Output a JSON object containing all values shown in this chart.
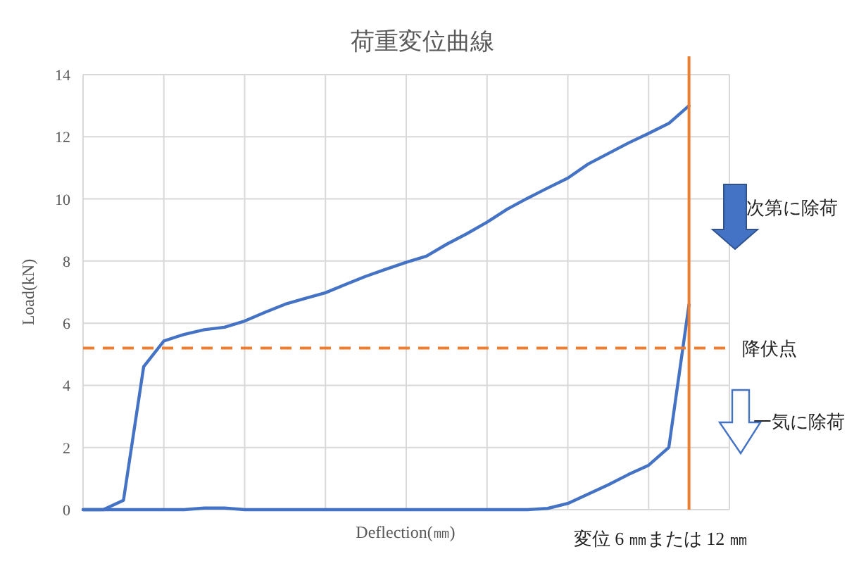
{
  "chart_data": {
    "type": "line",
    "title": "荷重変位曲線",
    "xlabel": "Deflection(㎜)",
    "ylabel": "Load(kN)",
    "categories": [
      null,
      null,
      null,
      null,
      null,
      null,
      null,
      null,
      null,
      null,
      null,
      null,
      null,
      null,
      null,
      null,
      null,
      null,
      null,
      null,
      null,
      null,
      null,
      null,
      null,
      null,
      null,
      null,
      null,
      null,
      null,
      null,
      null
    ],
    "ylim": [
      0,
      14
    ],
    "yticks": [
      0,
      2,
      4,
      6,
      8,
      10,
      12,
      14
    ],
    "grid": true,
    "marker": "none",
    "line_style": "solid",
    "series": [
      {
        "color": "#4472c4",
        "values": [
          0,
          0,
          0.3,
          4.6,
          5.43,
          5.64,
          5.79,
          5.87,
          6.07,
          6.35,
          6.61,
          6.8,
          6.98,
          7.25,
          7.51,
          7.74,
          7.96,
          8.16,
          8.54,
          8.88,
          9.25,
          9.67,
          10.02,
          10.35,
          10.67,
          11.12,
          11.46,
          11.8,
          12.11,
          12.43,
          13.0,
          null,
          null
        ]
      },
      {
        "color": "#4472c4",
        "values": [
          0,
          0,
          0,
          0,
          0,
          0,
          0.05,
          0.05,
          0,
          0,
          0,
          0,
          0,
          0,
          0,
          0,
          0,
          0,
          0,
          0,
          0,
          0,
          0,
          0.04,
          0.2,
          0.5,
          0.8,
          1.13,
          1.43,
          2.0,
          6.6,
          null,
          null
        ]
      }
    ],
    "ref_lines": [
      {
        "axis": "y",
        "value": 5.2,
        "label": "降伏点",
        "color": "#ed7d31",
        "line_style": "dashed"
      }
    ],
    "annotations": [
      "次第に除荷",
      "一気に除荷",
      "変位 6 ㎜または 12 ㎜"
    ]
  }
}
